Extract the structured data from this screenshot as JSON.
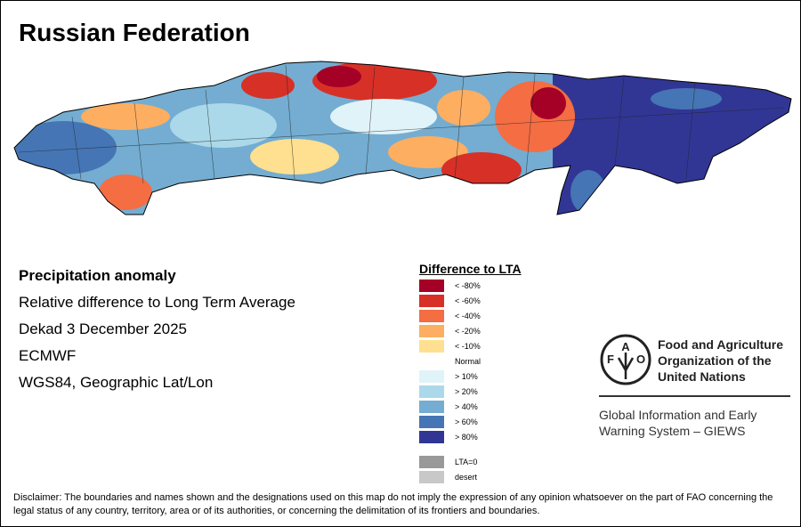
{
  "title": "Russian Federation",
  "info": {
    "heading": "Precipitation anomaly",
    "subtitle": "Relative difference to Long Term Average",
    "period": "Dekad 3 December 2025",
    "source": "ECMWF",
    "projection": "WGS84, Geographic Lat/Lon"
  },
  "legend": {
    "title": "Difference to LTA",
    "items": [
      {
        "label": "< -80%",
        "color": "#a50026"
      },
      {
        "label": "< -60%",
        "color": "#d73027"
      },
      {
        "label": "< -40%",
        "color": "#f46d43"
      },
      {
        "label": "< -20%",
        "color": "#fdae61"
      },
      {
        "label": "< -10%",
        "color": "#fee090"
      },
      {
        "label": "Normal",
        "color": "#ffffff"
      },
      {
        "label": "> 10%",
        "color": "#e0f3f8"
      },
      {
        "label": "> 20%",
        "color": "#abd9e9"
      },
      {
        "label": "> 40%",
        "color": "#74add1"
      },
      {
        "label": "> 60%",
        "color": "#4575b4"
      },
      {
        "label": "> 80%",
        "color": "#313695"
      }
    ],
    "extra": [
      {
        "label": "LTA=0",
        "color": "#999999"
      },
      {
        "label": "desert",
        "color": "#c8c8c8"
      }
    ]
  },
  "logo": {
    "letters": "FAO FIAT PANIS",
    "org_name": [
      "Food and Agriculture",
      "Organization of the",
      "United Nations"
    ],
    "system": [
      "Global Information and Early",
      "Warning System – GIEWS"
    ]
  },
  "disclaimer": "Disclaimer: The boundaries and names shown and the designations used on this map do not imply the expression of any opinion whatsoever on the part of FAO concerning the legal status of any country, territory, area or of its authorities, or concerning the delimitation of its frontiers and boundaries."
}
